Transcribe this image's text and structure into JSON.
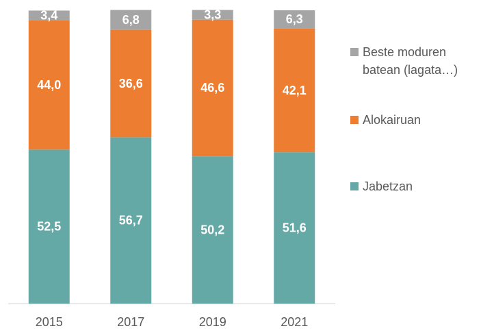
{
  "chart_data": {
    "type": "stacked_bar",
    "categories": [
      "2015",
      "2017",
      "2019",
      "2021"
    ],
    "series": [
      {
        "name": "Jabetzan",
        "color": "#65a9a6",
        "values": [
          52.5,
          56.7,
          50.2,
          51.6
        ],
        "value_labels": [
          "52,5",
          "56,7",
          "50,2",
          "51,6"
        ]
      },
      {
        "name": "Alokairuan",
        "color": "#ed7d31",
        "values": [
          44.0,
          36.6,
          46.6,
          42.1
        ],
        "value_labels": [
          "44,0",
          "36,6",
          "46,6",
          "42,1"
        ]
      },
      {
        "name": "Beste moduren batean (lagata…)",
        "color": "#a5a5a5",
        "values": [
          3.4,
          6.8,
          3.3,
          6.3
        ],
        "value_labels": [
          "3,4",
          "6,8",
          "3,3",
          "6,3"
        ]
      }
    ],
    "ylim": [
      0,
      100
    ],
    "legend": "right"
  }
}
